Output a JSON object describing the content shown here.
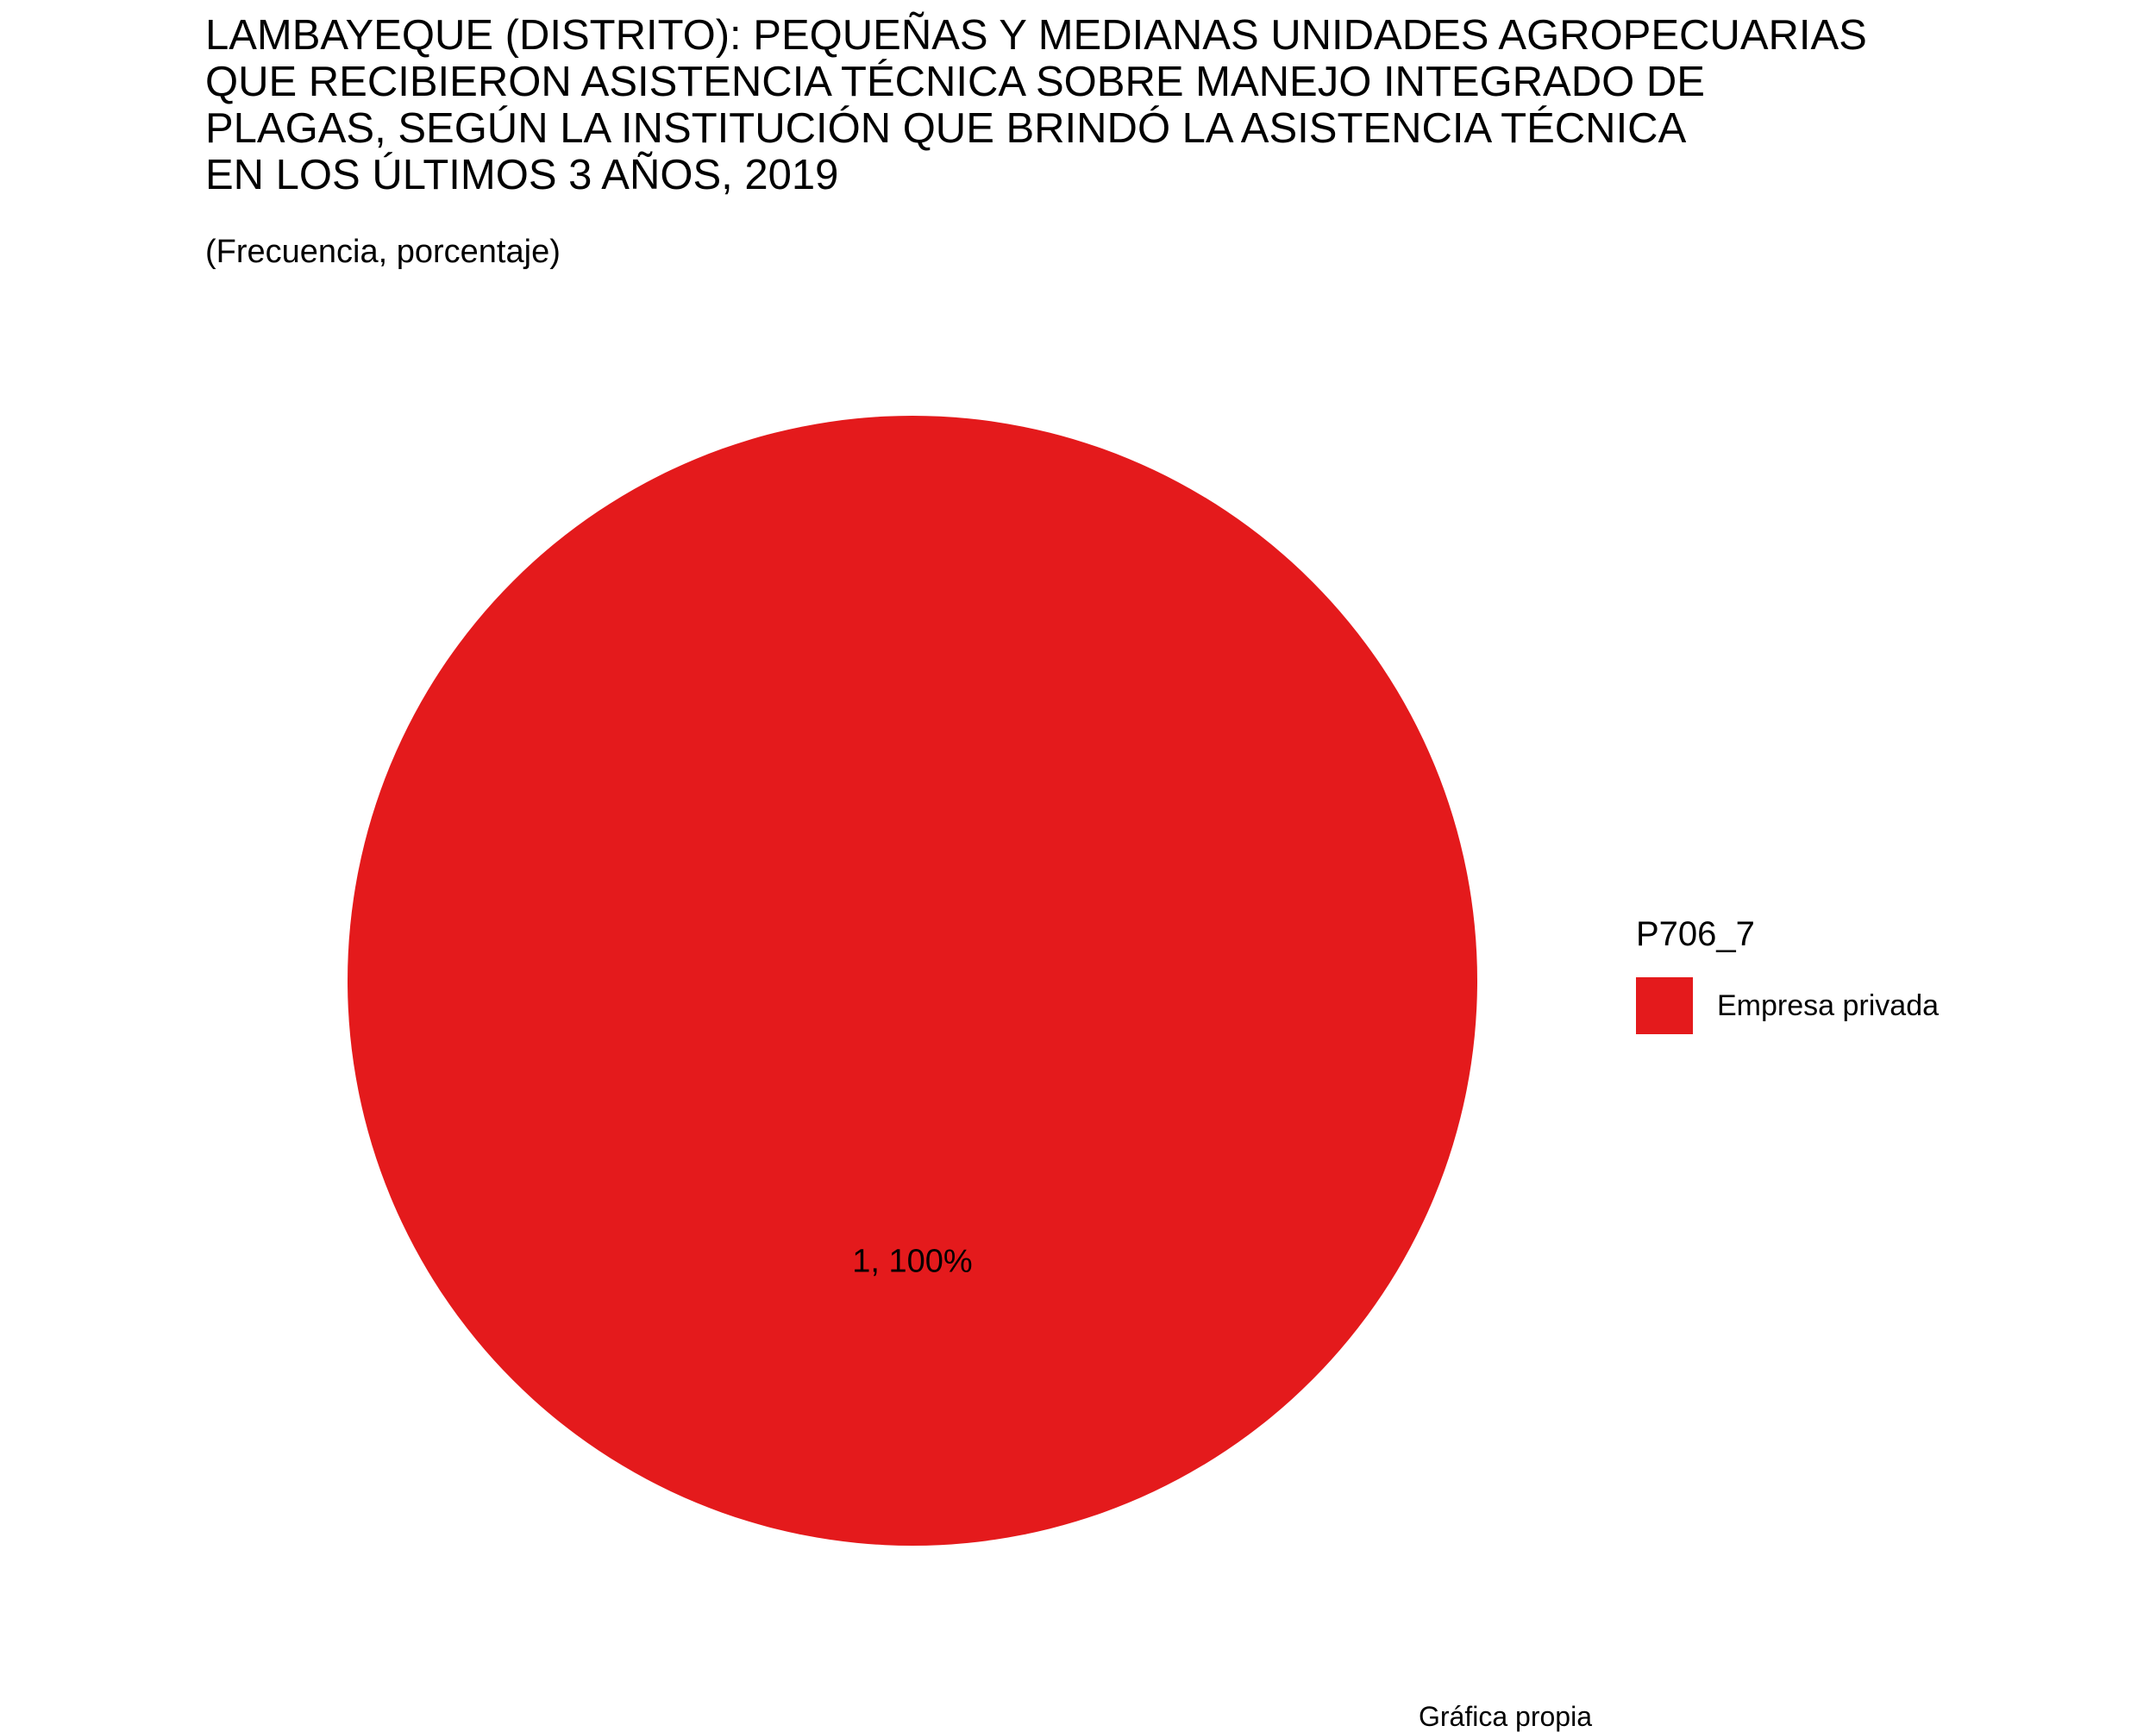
{
  "chart_data": {
    "type": "pie",
    "title_lines": [
      "LAMBAYEQUE (DISTRITO): PEQUEÑAS Y MEDIANAS UNIDADES AGROPECUARIAS",
      "QUE RECIBIERON ASISTENCIA TÉCNICA SOBRE MANEJO INTEGRADO DE",
      "PLAGAS, SEGÚN LA INSTITUCIÓN QUE BRINDÓ LA ASISTENCIA TÉCNICA",
      "EN LOS ÚLTIMOS 3 AÑOS, 2019"
    ],
    "subtitle": "(Frecuencia, porcentaje)",
    "legend_title": "P706_7",
    "legend_position": "right",
    "slices": [
      {
        "label": "Empresa privada",
        "value": 1,
        "percent": 100,
        "data_label": "1, 100%",
        "color": "#E41A1C"
      }
    ],
    "caption": "Gráfica propia"
  }
}
